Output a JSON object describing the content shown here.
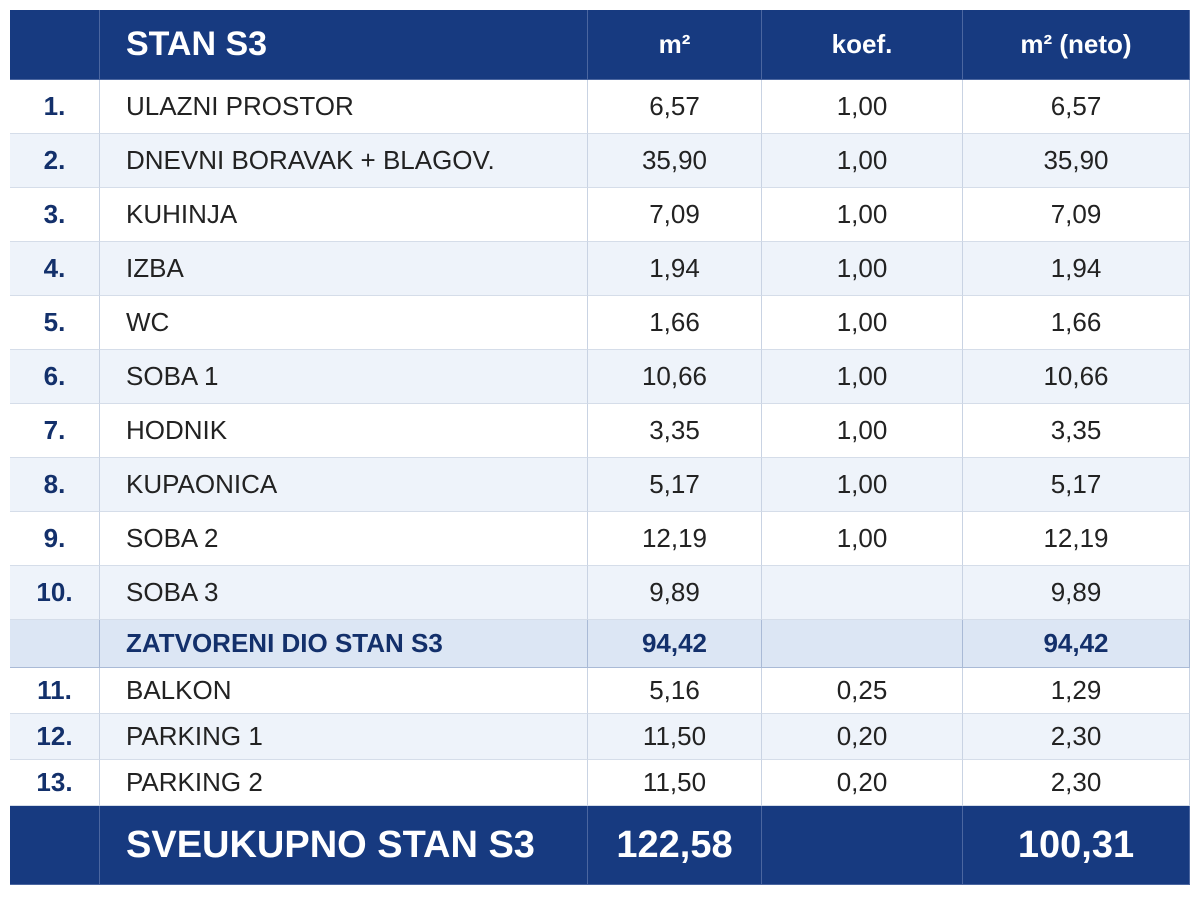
{
  "header": {
    "title": "STAN S3",
    "m2": "m²",
    "koef": "koef.",
    "neto": "m² (neto)"
  },
  "rows": [
    [
      "1.",
      "ULAZNI PROSTOR",
      "6,57",
      "1,00",
      "6,57"
    ],
    [
      "2.",
      "DNEVNI BORAVAK + BLAGOV.",
      "35,90",
      "1,00",
      "35,90"
    ],
    [
      "3.",
      "KUHINJA",
      "7,09",
      "1,00",
      "7,09"
    ],
    [
      "4.",
      "IZBA",
      "1,94",
      "1,00",
      "1,94"
    ],
    [
      "5.",
      "WC",
      "1,66",
      "1,00",
      "1,66"
    ],
    [
      "6.",
      "SOBA 1",
      "10,66",
      "1,00",
      "10,66"
    ],
    [
      "7.",
      "HODNIK",
      "3,35",
      "1,00",
      "3,35"
    ],
    [
      "8.",
      "KUPAONICA",
      "5,17",
      "1,00",
      "5,17"
    ],
    [
      "9.",
      "SOBA 2",
      "12,19",
      "1,00",
      "12,19"
    ],
    [
      "10.",
      "SOBA 3",
      "9,89",
      null,
      "9,89"
    ]
  ],
  "subtotal": {
    "label": "ZATVORENI DIO STAN S3",
    "m2": "94,42",
    "neto": "94,42"
  },
  "rows2": [
    [
      "11.",
      "BALKON",
      "5,16",
      "0,25",
      "1,29"
    ],
    [
      "12.",
      "PARKING 1",
      "11,50",
      "0,20",
      "2,30"
    ],
    [
      "13.",
      "PARKING 2",
      "11,50",
      "0,20",
      "2,30"
    ]
  ],
  "total": {
    "label": "SVEUKUPNO STAN S3",
    "m2": "122,58",
    "neto": "100,31"
  }
}
